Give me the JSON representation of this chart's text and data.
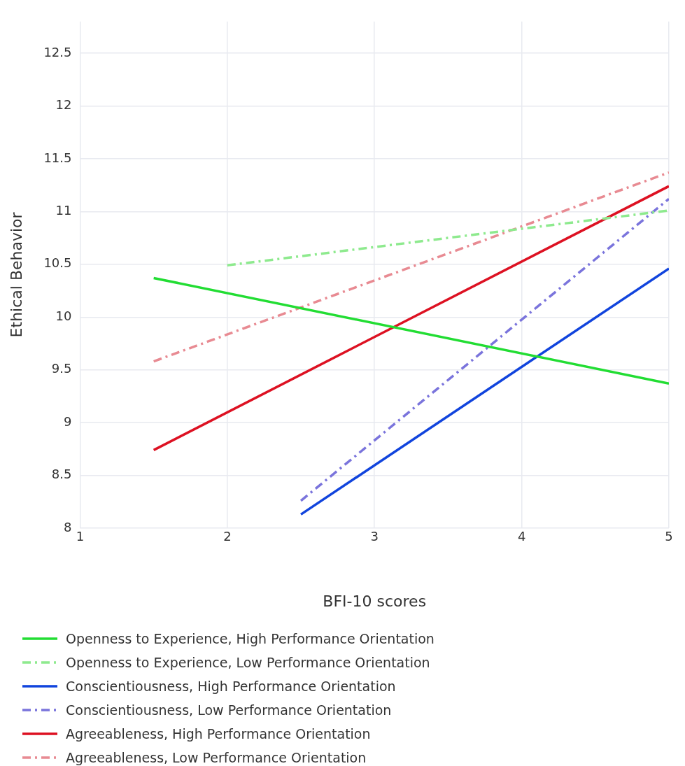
{
  "chart_data": {
    "type": "line",
    "xlabel": "BFI-10 scores",
    "ylabel": "Ethical Behavior",
    "xlim": [
      1,
      5
    ],
    "xticks": [
      1,
      2,
      3,
      4,
      5
    ],
    "ylim": [
      8,
      12.8
    ],
    "yticks": [
      8,
      8.5,
      9,
      9.5,
      10,
      10.5,
      11,
      11.5,
      12,
      12.5
    ],
    "grid": true,
    "legend": "bottom",
    "marker": "none",
    "series": [
      {
        "name": "Openness to Experience, High Performance Orientation",
        "color": "#22dd33",
        "line_style": "solid",
        "x": [
          1.5,
          5
        ],
        "values": [
          10.37,
          9.37
        ]
      },
      {
        "name": "Openness to Experience, Low Performance Orientation",
        "color": "#8eea8e",
        "line_style": "dashed",
        "x": [
          2,
          5
        ],
        "values": [
          10.49,
          11.01
        ]
      },
      {
        "name": "Conscientiousness, High Performance Orientation",
        "color": "#1144dd",
        "line_style": "solid",
        "x": [
          2.5,
          5
        ],
        "values": [
          8.13,
          10.46
        ]
      },
      {
        "name": "Conscientiousness, Low Performance Orientation",
        "color": "#7a74dc",
        "line_style": "dashed",
        "x": [
          2.5,
          5
        ],
        "values": [
          8.26,
          11.12
        ]
      },
      {
        "name": "Agreeableness, High Performance Orientation",
        "color": "#dd1122",
        "line_style": "solid",
        "x": [
          1.5,
          5
        ],
        "values": [
          8.74,
          11.24
        ]
      },
      {
        "name": "Agreeableness, Low Performance Orientation",
        "color": "#e88a92",
        "line_style": "dashed",
        "x": [
          1.5,
          5
        ],
        "values": [
          9.58,
          11.37
        ]
      }
    ]
  }
}
